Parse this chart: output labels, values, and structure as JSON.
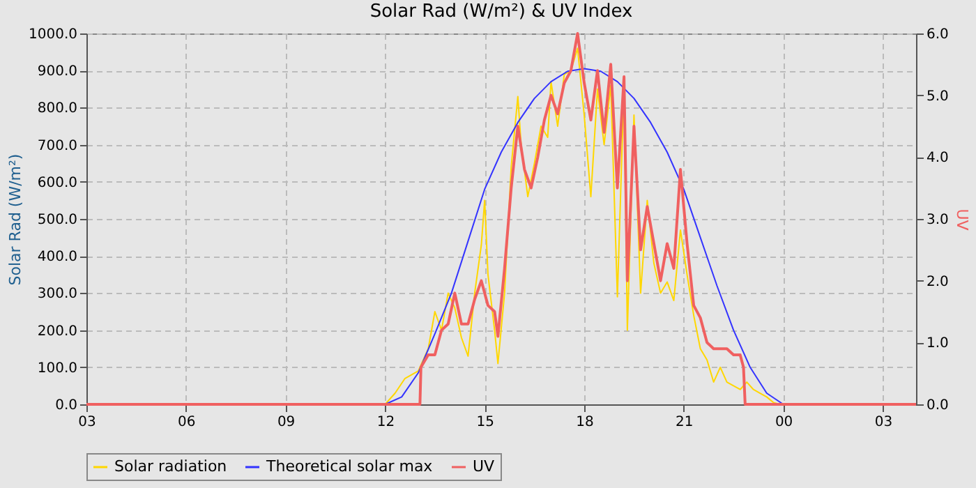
{
  "chart_data": {
    "type": "line",
    "title": "Solar Rad (W/m²) &  UV Index",
    "ylabel": "Solar Rad (W/m²)",
    "y2label": "UV",
    "xlim": [
      3,
      28
    ],
    "xticks": [
      {
        "value": 3,
        "label": "03"
      },
      {
        "value": 6,
        "label": "06"
      },
      {
        "value": 9,
        "label": "09"
      },
      {
        "value": 12,
        "label": "12"
      },
      {
        "value": 15,
        "label": "15"
      },
      {
        "value": 18,
        "label": "18"
      },
      {
        "value": 21,
        "label": "21"
      },
      {
        "value": 24,
        "label": "00"
      },
      {
        "value": 27,
        "label": "03"
      }
    ],
    "ylim": [
      0,
      1000
    ],
    "yticks": [
      {
        "value": 0,
        "label": "0.0"
      },
      {
        "value": 100,
        "label": "100.0"
      },
      {
        "value": 200,
        "label": "200.0"
      },
      {
        "value": 300,
        "label": "300.0"
      },
      {
        "value": 400,
        "label": "400.0"
      },
      {
        "value": 500,
        "label": "500.0"
      },
      {
        "value": 600,
        "label": "600.0"
      },
      {
        "value": 700,
        "label": "700.0"
      },
      {
        "value": 800,
        "label": "800.0"
      },
      {
        "value": 900,
        "label": "900.0"
      },
      {
        "value": 1000,
        "label": "1000.0"
      }
    ],
    "y2lim": [
      0,
      6
    ],
    "y2ticks": [
      {
        "value": 0,
        "label": "0.0"
      },
      {
        "value": 1,
        "label": "1.0"
      },
      {
        "value": 2,
        "label": "2.0"
      },
      {
        "value": 3,
        "label": "3.0"
      },
      {
        "value": 4,
        "label": "4.0"
      },
      {
        "value": 5,
        "label": "5.0"
      },
      {
        "value": 6,
        "label": "6.0"
      }
    ],
    "grid": true,
    "legend": "bottom",
    "line_style": "solid",
    "series": [
      {
        "name": "Solar radiation",
        "color": "#ffd700",
        "x": [
          3,
          12.0,
          12.3,
          12.6,
          13.0,
          13.3,
          13.5,
          13.7,
          13.9,
          14.1,
          14.3,
          14.5,
          14.7,
          14.9,
          15.0,
          15.1,
          15.3,
          15.4,
          15.6,
          15.8,
          16.0,
          16.1,
          16.3,
          16.5,
          16.7,
          16.9,
          17.0,
          17.2,
          17.4,
          17.6,
          17.8,
          18.0,
          18.2,
          18.4,
          18.6,
          18.8,
          19.0,
          19.2,
          19.3,
          19.5,
          19.7,
          19.9,
          20.1,
          20.3,
          20.5,
          20.7,
          20.9,
          21.1,
          21.3,
          21.5,
          21.7,
          21.9,
          22.1,
          22.3,
          22.5,
          22.7,
          22.9,
          23.1,
          23.3,
          23.5,
          23.7,
          23.9,
          24.0,
          28
        ],
        "values": [
          0,
          0,
          30,
          70,
          90,
          150,
          250,
          200,
          300,
          260,
          180,
          130,
          300,
          430,
          550,
          350,
          200,
          110,
          300,
          640,
          830,
          700,
          560,
          650,
          750,
          720,
          870,
          750,
          890,
          900,
          960,
          780,
          560,
          850,
          700,
          860,
          290,
          860,
          200,
          780,
          300,
          550,
          380,
          300,
          330,
          280,
          470,
          350,
          240,
          150,
          120,
          60,
          100,
          60,
          50,
          40,
          60,
          40,
          30,
          20,
          5,
          0,
          0,
          0
        ]
      },
      {
        "name": "Theoretical solar max",
        "color": "#3333ff",
        "x": [
          3,
          12.0,
          12.5,
          13.0,
          13.5,
          14.0,
          14.5,
          15.0,
          15.5,
          16.0,
          16.5,
          17.0,
          17.5,
          18.0,
          18.5,
          19.0,
          19.5,
          20.0,
          20.5,
          21.0,
          21.5,
          22.0,
          22.5,
          23.0,
          23.5,
          24.0,
          28
        ],
        "values": [
          0,
          0,
          20,
          85,
          190,
          300,
          440,
          580,
          680,
          760,
          825,
          870,
          898,
          905,
          898,
          870,
          825,
          760,
          680,
          580,
          450,
          320,
          200,
          100,
          30,
          0,
          0
        ]
      },
      {
        "name": "UV",
        "color": "#f06060",
        "axis": "y2",
        "x": [
          3,
          13.05,
          13.08,
          13.3,
          13.5,
          13.7,
          13.9,
          14.1,
          14.3,
          14.5,
          14.7,
          14.9,
          15.1,
          15.3,
          15.4,
          15.6,
          15.8,
          16.0,
          16.2,
          16.4,
          16.6,
          16.8,
          17.0,
          17.2,
          17.4,
          17.6,
          17.8,
          18.0,
          18.2,
          18.4,
          18.6,
          18.8,
          19.0,
          19.2,
          19.3,
          19.5,
          19.7,
          19.9,
          20.1,
          20.3,
          20.5,
          20.7,
          20.9,
          21.1,
          21.3,
          21.5,
          21.7,
          21.9,
          22.1,
          22.3,
          22.5,
          22.7,
          22.8,
          22.85,
          28
        ],
        "values": [
          0,
          0,
          0.6,
          0.8,
          0.8,
          1.2,
          1.3,
          1.8,
          1.3,
          1.3,
          1.7,
          2.0,
          1.6,
          1.5,
          1.1,
          2.2,
          3.5,
          4.5,
          3.8,
          3.5,
          4.0,
          4.6,
          5.0,
          4.7,
          5.2,
          5.4,
          6.0,
          5.2,
          4.6,
          5.4,
          4.4,
          5.5,
          3.5,
          5.3,
          2.0,
          4.5,
          2.5,
          3.2,
          2.6,
          2.0,
          2.6,
          2.2,
          3.8,
          2.6,
          1.6,
          1.4,
          1.0,
          0.9,
          0.9,
          0.9,
          0.8,
          0.8,
          0.6,
          0,
          0
        ]
      }
    ]
  }
}
